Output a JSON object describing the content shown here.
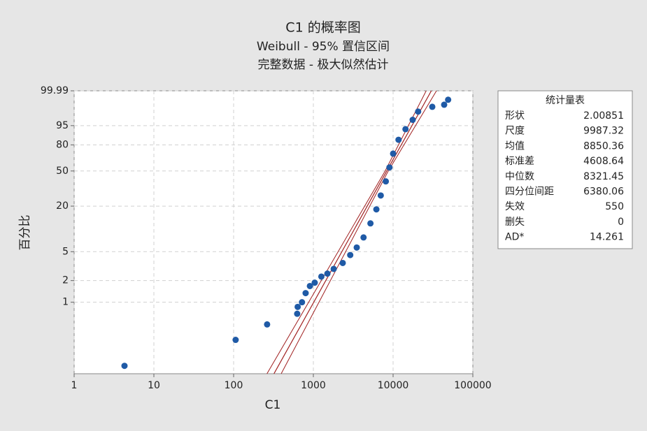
{
  "chart_data": {
    "type": "probability",
    "title": "C1 的概率图",
    "subtitle": "Weibull - 95% 置信区间",
    "subtitle2": "完整数据 - 极大似然估计",
    "xlabel": "C1",
    "ylabel": "百分比",
    "xscale": "log",
    "yscale": "weibull",
    "xlim": [
      1,
      100000
    ],
    "ylim": [
      0.1,
      99.99
    ],
    "xticks": [
      1,
      10,
      100,
      1000,
      10000,
      100000
    ],
    "yticks": [
      1,
      2,
      5,
      20,
      50,
      80,
      95,
      99.99
    ],
    "grid": true,
    "color": "#1f5aa6",
    "fit_color": "#a01f1f",
    "x": [
      4.28,
      106,
      263,
      627,
      636,
      720,
      800,
      905,
      1040,
      1260,
      1500,
      1800,
      2336,
      2900,
      3500,
      4260,
      5200,
      6170,
      7000,
      8100,
      9000,
      10000,
      11700,
      14300,
      17600,
      20600,
      31000,
      43700,
      49000
    ],
    "values": [
      0.129,
      0.298,
      0.49,
      0.69,
      0.86,
      1.0,
      1.34,
      1.68,
      1.87,
      2.27,
      2.5,
      2.9,
      3.5,
      4.5,
      5.7,
      7.8,
      12.0,
      18.2,
      27.0,
      39.1,
      54.0,
      70.3,
      85.0,
      93.1,
      97.3,
      99.1,
      99.59,
      99.72,
      99.9
    ],
    "ci": [
      {
        "x": [
          262,
          7950,
          26000
        ],
        "y": [
          0.1,
          50,
          99.99
        ]
      },
      {
        "x": [
          395,
          8700,
          35000
        ],
        "y": [
          0.1,
          50,
          99.99
        ]
      }
    ],
    "stats": {
      "title": "统计量表",
      "rows": [
        {
          "label": "形状",
          "value": 2.00851
        },
        {
          "label": "尺度",
          "value": 9987.32
        },
        {
          "label": "均值",
          "value": 8850.36
        },
        {
          "label": "标准差",
          "value": 4608.64
        },
        {
          "label": "中位数",
          "value": 8321.45
        },
        {
          "label": "四分位间距",
          "value": 6380.06
        },
        {
          "label": "失效",
          "value": 550
        },
        {
          "label": "删失",
          "value": 0
        },
        {
          "label": "AD*",
          "value": 14.261
        }
      ]
    }
  }
}
